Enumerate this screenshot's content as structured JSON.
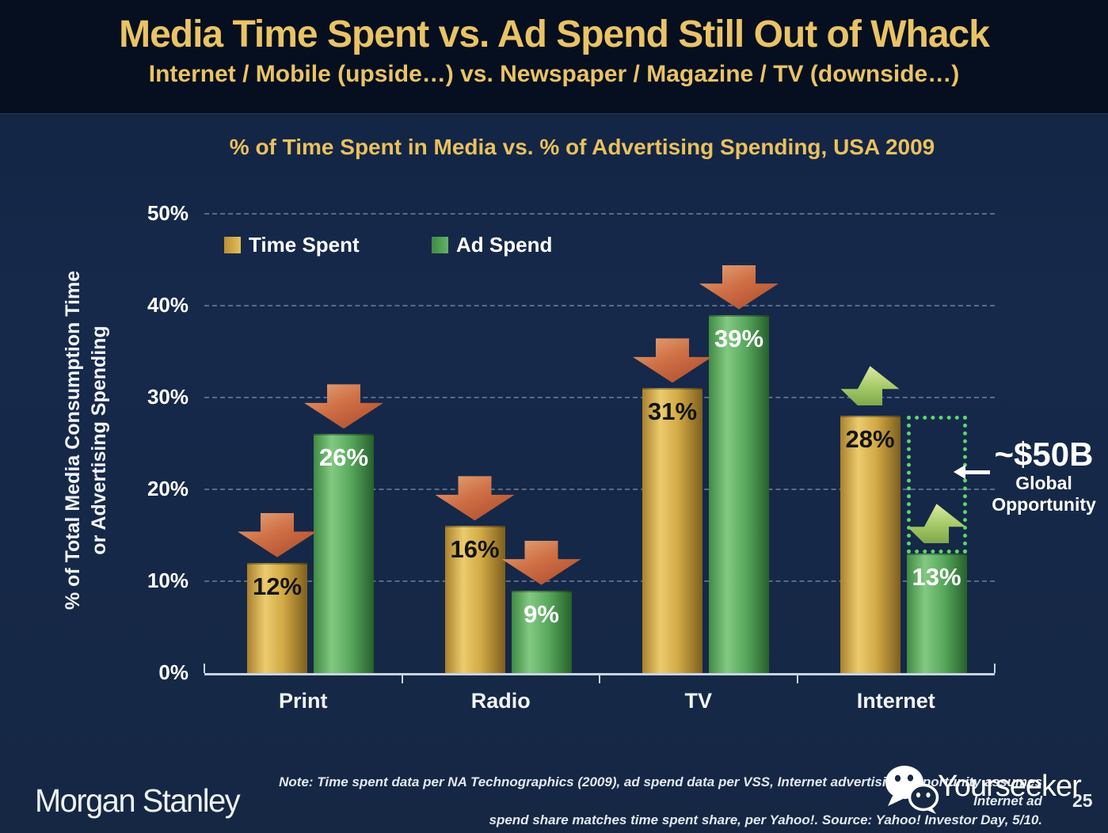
{
  "header": {
    "title": "Media Time Spent vs. Ad Spend Still Out of Whack",
    "subtitle": "Internet / Mobile (upside…) vs. Newspaper / Magazine / TV (downside…)"
  },
  "chart": {
    "title": "% of Time Spent in Media vs. % of Advertising Spending, USA 2009",
    "y_axis_title_line1": "% of Total Media Consumption Time",
    "y_axis_title_line2": "or Advertising Spending",
    "legend": [
      {
        "label": "Time Spent",
        "swatch_color": "#d2a945"
      },
      {
        "label": "Ad Spend",
        "swatch_color": "#57a75c"
      }
    ]
  },
  "chart_data": {
    "type": "bar",
    "title": "% of Time Spent in Media vs. % of Advertising Spending, USA 2009",
    "categories": [
      "Print",
      "Radio",
      "TV",
      "Internet"
    ],
    "series": [
      {
        "name": "Time Spent",
        "values": [
          12,
          16,
          31,
          28
        ],
        "color": "#d2a945",
        "label_color": "dark"
      },
      {
        "name": "Ad Spend",
        "values": [
          26,
          9,
          39,
          13
        ],
        "color": "#57a75c",
        "label_color": "light"
      }
    ],
    "value_label_suffix": "%",
    "ylabel": "% of Total Media Consumption Time or Advertising Spending",
    "ylim": [
      0,
      50
    ],
    "y_ticks": [
      "0%",
      "10%",
      "20%",
      "30%",
      "40%",
      "50%"
    ],
    "grid": "horizontal-dashed",
    "legend_position": "top-left-inside",
    "arrow_annotations": [
      {
        "category": "Print",
        "directions": [
          "down",
          "down"
        ]
      },
      {
        "category": "Radio",
        "directions": [
          "down",
          "down"
        ]
      },
      {
        "category": "TV",
        "directions": [
          "down",
          "down"
        ]
      },
      {
        "category": "Internet",
        "directions": [
          "up",
          "up"
        ]
      }
    ],
    "gap_annotation": {
      "category": "Internet",
      "from_value": 13,
      "to_value": 28,
      "box_style": "green-dotted-outline",
      "value_text": "~$50B",
      "label_line1": "Global",
      "label_line2": "Opportunity"
    }
  },
  "footer": {
    "logo_text": "Morgan Stanley",
    "note_line1": "Note: Time spent data per NA Technographics (2009), ad spend data per VSS, Internet advertising opportunity assumes Internet ad",
    "note_line2": "spend share matches time spent share, per Yahoo!. Source: Yahoo! Investor Day, 5/10.",
    "watermark_text": "Yourseeker",
    "page_number": "25"
  },
  "colors": {
    "header_bg": "#060f1f",
    "panel_bg": "#16294b",
    "title_gold": "#e9c366",
    "bar_gold": "#d2a945",
    "bar_green": "#57a75c",
    "down_arrow_red": "#cf7046",
    "up_arrow_green": "#a9cc6a",
    "dotted_box_green": "#5ed46e",
    "axis_line": "#c9d3e2"
  }
}
